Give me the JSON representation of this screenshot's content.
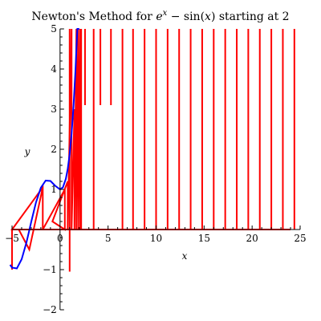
{
  "chart_data": {
    "type": "line",
    "title": {
      "prefix": "Newton's Method for ",
      "base": "e",
      "superscript": "x",
      "middle": " − sin",
      "paren_open": "(",
      "paren_var": "x",
      "paren_close": ")",
      "suffix": " starting at 2"
    },
    "xlabel": "x",
    "ylabel": "y",
    "xlim": [
      -5,
      25
    ],
    "ylim": [
      -2,
      5
    ],
    "x_ticks": [
      -5,
      0,
      5,
      10,
      15,
      20,
      25
    ],
    "x_tick_labels": [
      "−5",
      "0",
      "5",
      "10",
      "15",
      "20",
      "25"
    ],
    "y_ticks": [
      -2,
      -1,
      1,
      2,
      3,
      4,
      5
    ],
    "y_tick_labels": [
      "−2",
      "−1",
      "1",
      "2",
      "3",
      "4",
      "5"
    ],
    "grid": false,
    "colors": {
      "function": "#0000ff",
      "iterations": "#ff0000",
      "axes": "#000000"
    },
    "function_series": {
      "name": "e^x − sin(x)",
      "x": [
        -5.2,
        -5,
        -4.5,
        -4,
        -3.5,
        -3.2,
        -3,
        -2.5,
        -2,
        -1.5,
        -1,
        -0.5,
        0,
        0.3,
        0.6,
        0.8,
        1,
        1.2,
        1.4,
        1.6,
        1.8,
        2
      ],
      "y": [
        -0.88,
        -0.95,
        -0.97,
        -0.74,
        -0.32,
        -0.02,
        0.19,
        0.68,
        1.04,
        1.22,
        1.21,
        1.09,
        1.0,
        1.05,
        1.26,
        1.51,
        1.88,
        2.39,
        3.07,
        3.95,
        5.07,
        6.48
      ]
    },
    "iteration_path": {
      "x": [
        -5,
        -5,
        -4.3,
        -3.2,
        -1.8,
        -1.8,
        -5,
        -1.8,
        -1.8,
        0.5,
        0.5,
        -0.8,
        0.8,
        0.8,
        1.2,
        1.2,
        1.5,
        1.5,
        1.7,
        1.7,
        1.9,
        1.9,
        2.1,
        2.1,
        24,
        -5
      ],
      "y": [
        -1,
        0,
        0,
        -0.5,
        1.05,
        0,
        0,
        1.05,
        0,
        1.0,
        0,
        0.2,
        1.2,
        0,
        5,
        0,
        3,
        0,
        5,
        0,
        5,
        0,
        5,
        0,
        0,
        0
      ]
    },
    "vertical_iteration_lines": [
      {
        "x": 1.0,
        "y_from": -1.05,
        "y_to": 5
      },
      {
        "x": 2.2,
        "y_from": 0,
        "y_to": 5
      },
      {
        "x": 2.6,
        "y_from": 3.1,
        "y_to": 5
      },
      {
        "x": 3.5,
        "y_from": 0,
        "y_to": 5
      },
      {
        "x": 4.2,
        "y_from": 3.1,
        "y_to": 5
      },
      {
        "x": 5.3,
        "y_from": 3.1,
        "y_to": 5
      },
      {
        "x": 6.5,
        "y_from": 0,
        "y_to": 5
      },
      {
        "x": 7.6,
        "y_from": 0,
        "y_to": 5
      },
      {
        "x": 8.8,
        "y_from": 0,
        "y_to": 5
      },
      {
        "x": 10.0,
        "y_from": 0,
        "y_to": 5
      },
      {
        "x": 11.2,
        "y_from": 0,
        "y_to": 5
      },
      {
        "x": 12.4,
        "y_from": 0,
        "y_to": 5
      },
      {
        "x": 13.6,
        "y_from": 0,
        "y_to": 5
      },
      {
        "x": 14.8,
        "y_from": 0,
        "y_to": 5
      },
      {
        "x": 16.0,
        "y_from": 0,
        "y_to": 5
      },
      {
        "x": 17.2,
        "y_from": 0,
        "y_to": 5
      },
      {
        "x": 18.4,
        "y_from": 0,
        "y_to": 5
      },
      {
        "x": 19.6,
        "y_from": 0,
        "y_to": 5
      },
      {
        "x": 20.8,
        "y_from": 0,
        "y_to": 5
      },
      {
        "x": 22.0,
        "y_from": 0,
        "y_to": 5
      },
      {
        "x": 23.2,
        "y_from": 0,
        "y_to": 5
      },
      {
        "x": 24.4,
        "y_from": 0,
        "y_to": 5
      }
    ]
  }
}
